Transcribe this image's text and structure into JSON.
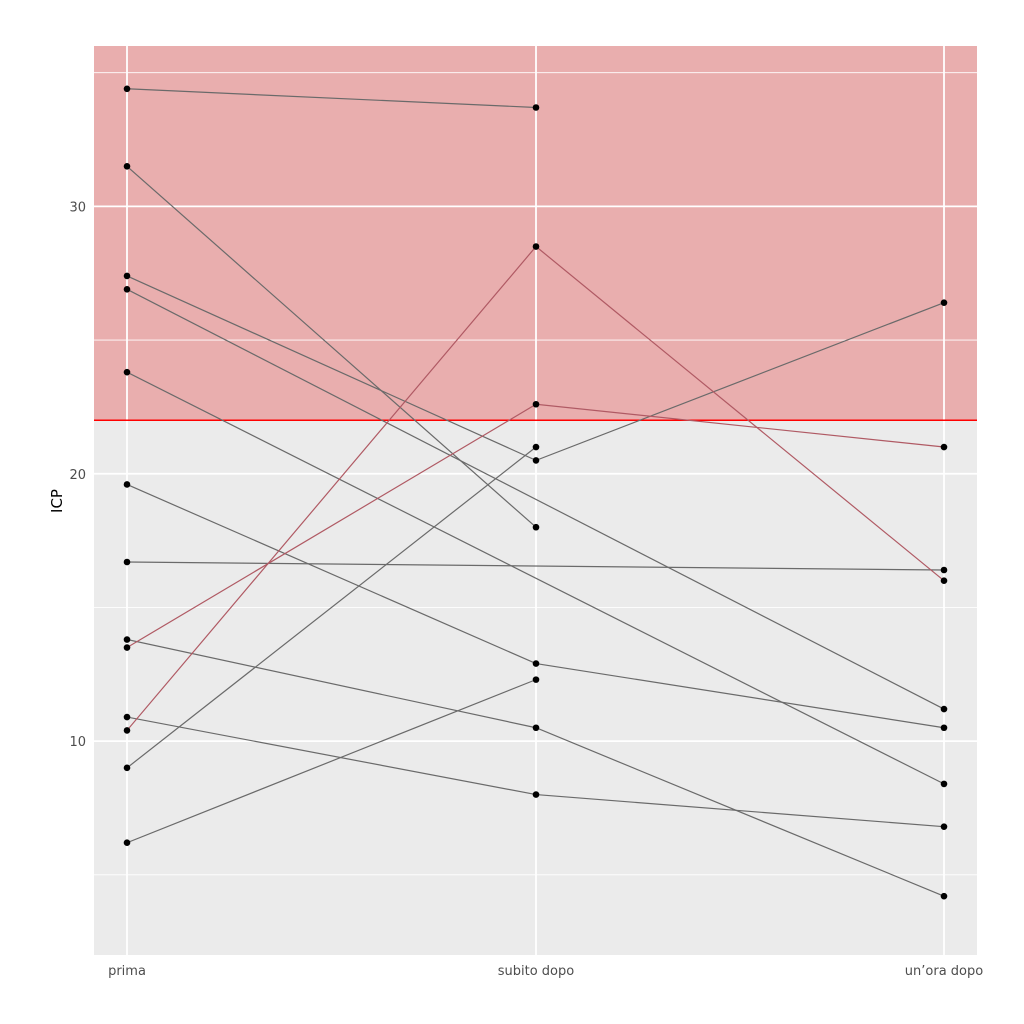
{
  "chart_data": {
    "type": "line",
    "ylabel": "ICP",
    "xlabel": "",
    "categories": [
      "prima",
      "subito dopo",
      "un’ora dopo"
    ],
    "ylim": [
      2,
      36
    ],
    "yticks": [
      10,
      20,
      30
    ],
    "threshold": 22,
    "grid": true,
    "colors": {
      "panel_bg": "#ebebeb",
      "gridline": "#ffffff",
      "danger_zone": "#e9aeae",
      "threshold_line": "#ff0000",
      "point": "#000000",
      "line_default": "#6a6a6a",
      "line_highlight": "#b05a64"
    },
    "series": [
      {
        "values": [
          34.4,
          33.7,
          null
        ]
      },
      {
        "values": [
          31.5,
          18.0,
          null
        ]
      },
      {
        "values": [
          27.4,
          20.5,
          26.4
        ]
      },
      {
        "values": [
          26.9,
          null,
          11.2
        ]
      },
      {
        "values": [
          23.8,
          null,
          8.4
        ]
      },
      {
        "values": [
          19.6,
          12.9,
          10.5
        ]
      },
      {
        "values": [
          16.7,
          null,
          16.4
        ]
      },
      {
        "values": [
          13.8,
          10.5,
          4.2
        ]
      },
      {
        "values": [
          13.5,
          22.6,
          21.0
        ],
        "highlight": true
      },
      {
        "values": [
          10.9,
          8.0,
          6.8
        ]
      },
      {
        "values": [
          10.4,
          28.5,
          16.0
        ],
        "highlight": true
      },
      {
        "values": [
          9.0,
          21.0,
          null
        ]
      },
      {
        "values": [
          6.2,
          12.3,
          null
        ]
      }
    ]
  }
}
